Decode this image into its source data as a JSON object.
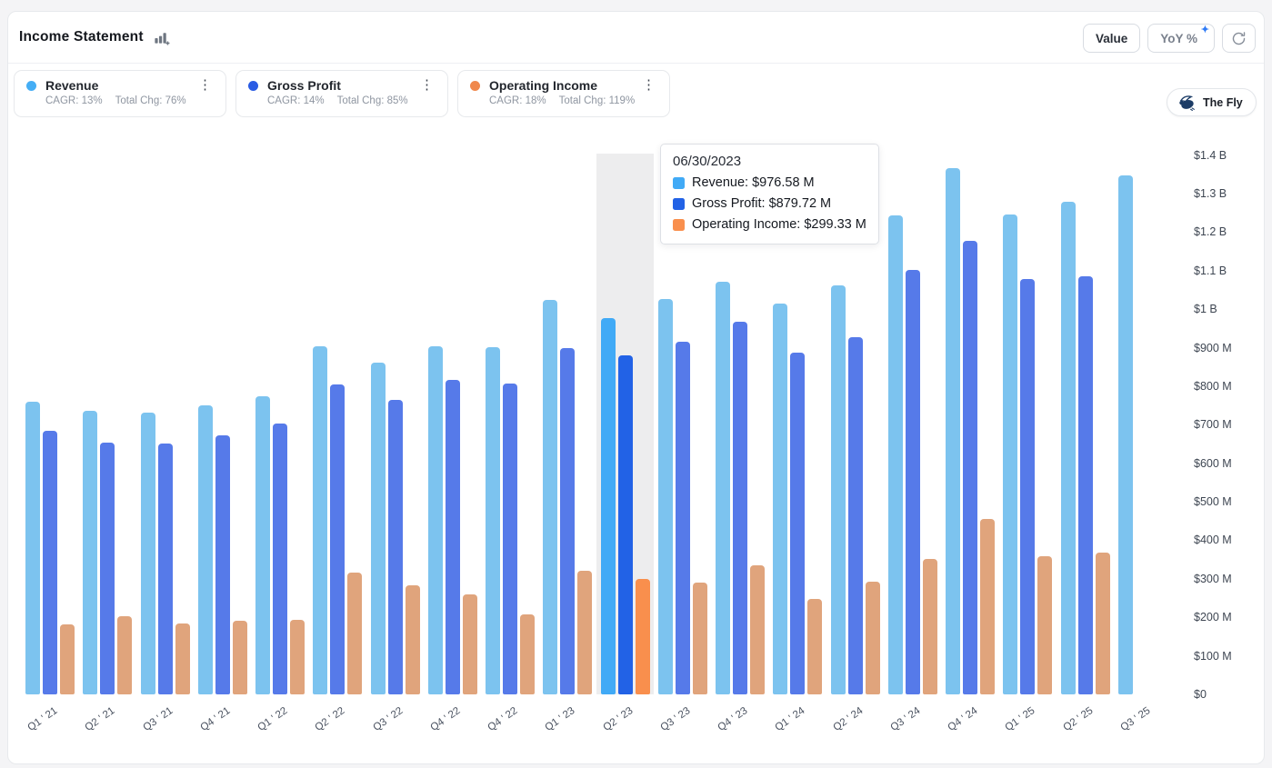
{
  "header": {
    "title": "Income Statement",
    "value_label": "Value",
    "yoy_label": "YoY %",
    "sparkle_glyph": "✦",
    "icons": [
      "add-chart-icon",
      "sparkle-icon",
      "refresh-icon",
      "kebab-menu-icon",
      "fly-icon"
    ],
    "kebab_glyph": "⋮"
  },
  "series_cards": [
    {
      "name": "Revenue",
      "cagr_label": "CAGR: 13%",
      "total_chg_label": "Total Chg: 76%",
      "color": "#45AEF5"
    },
    {
      "name": "Gross Profit",
      "cagr_label": "CAGR: 14%",
      "total_chg_label": "Total Chg: 85%",
      "color": "#2A5CE4"
    },
    {
      "name": "Operating Income",
      "cagr_label": "CAGR: 18%",
      "total_chg_label": "Total Chg: 119%",
      "color": "#F0884C"
    }
  ],
  "fly_badge": {
    "label": "The Fly"
  },
  "tooltip": {
    "date": "06/30/2023",
    "rows": [
      {
        "label": "Revenue: $976.58 M",
        "color": "#41AAF6"
      },
      {
        "label": "Gross Profit: $879.72 M",
        "color": "#2262E6"
      },
      {
        "label": "Operating Income: $299.33 M",
        "color": "#F98F4D"
      }
    ]
  },
  "chart_data": {
    "type": "bar",
    "title": "Income Statement",
    "unit": "USD millions",
    "grid": false,
    "legend_position": "top",
    "y_axis_side": "right",
    "x_label_rotation": -35,
    "highlight_index": 10,
    "highlight_color_band": "#EDEDEE",
    "categories": [
      "Q1 ' 21",
      "Q2 ' 21",
      "Q3 ' 21",
      "Q4 ' 21",
      "Q1 ' 22",
      "Q2 ' 22",
      "Q3 ' 22",
      "Q4 ' 22",
      "Q4 ' 22",
      "Q1 ' 23",
      "Q2 ' 23",
      "Q3 ' 23",
      "Q4 ' 23",
      "Q1 ' 24",
      "Q2 ' 24",
      "Q3 ' 24",
      "Q4 ' 24",
      "Q1 ' 25",
      "Q2 ' 25",
      "Q3 ' 25"
    ],
    "series": [
      {
        "name": "Revenue",
        "color": "#7CC3EF",
        "highlight_color": "#41AAF6",
        "values": [
          760,
          737,
          731,
          750,
          774,
          904,
          860,
          904,
          901,
          1025,
          976.58,
          1026,
          1072,
          1014,
          1062,
          1244,
          1365,
          1246,
          1279,
          1347
        ]
      },
      {
        "name": "Gross Profit",
        "color": "#567AE9",
        "highlight_color": "#2262E6",
        "values": [
          685,
          653,
          651,
          673,
          704,
          804,
          765,
          816,
          807,
          898,
          879.72,
          915,
          967,
          886,
          927,
          1102,
          1177,
          1078,
          1085,
          null
        ]
      },
      {
        "name": "Operating Income",
        "color": "#E0A47C",
        "highlight_color": "#F98F4D",
        "values": [
          182,
          203,
          184,
          192,
          194,
          316,
          283,
          260,
          208,
          321,
          299.33,
          290,
          336,
          247,
          292,
          351,
          456,
          359,
          369,
          null
        ]
      }
    ],
    "y_ticks": [
      {
        "label": "$1.4 B",
        "value": 1400
      },
      {
        "label": "$1.3 B",
        "value": 1300
      },
      {
        "label": "$1.2 B",
        "value": 1200
      },
      {
        "label": "$1.1 B",
        "value": 1100
      },
      {
        "label": "$1 B",
        "value": 1000
      },
      {
        "label": "$900 M",
        "value": 900
      },
      {
        "label": "$800 M",
        "value": 800
      },
      {
        "label": "$700 M",
        "value": 700
      },
      {
        "label": "$600 M",
        "value": 600
      },
      {
        "label": "$500 M",
        "value": 500
      },
      {
        "label": "$400 M",
        "value": 400
      },
      {
        "label": "$300 M",
        "value": 300
      },
      {
        "label": "$200 M",
        "value": 200
      },
      {
        "label": "$100 M",
        "value": 100
      },
      {
        "label": "$0",
        "value": 0
      }
    ],
    "ylim": [
      0,
      1400
    ]
  }
}
